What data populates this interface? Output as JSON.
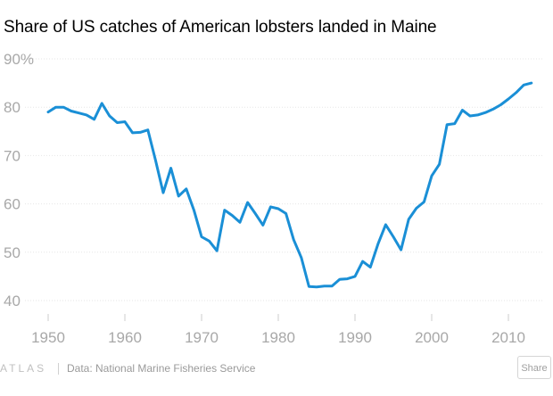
{
  "chart_data": {
    "type": "line",
    "title": "Share of US catches of American lobsters landed in Maine",
    "xlabel": "",
    "ylabel": "",
    "xlim": [
      1947,
      2015
    ],
    "ylim": [
      37,
      92
    ],
    "x_ticks": [
      1950,
      1960,
      1970,
      1980,
      1990,
      2000,
      2010
    ],
    "y_ticks": [
      40,
      50,
      60,
      70,
      80,
      90
    ],
    "y_tick_labels": [
      "40",
      "50",
      "60",
      "70",
      "80",
      "90%"
    ],
    "grid": true,
    "line_color": "#1a8fd6",
    "series": [
      {
        "name": "",
        "x": [
          1950,
          1951,
          1952,
          1953,
          1954,
          1955,
          1956,
          1957,
          1958,
          1959,
          1960,
          1961,
          1962,
          1963,
          1964,
          1965,
          1966,
          1967,
          1968,
          1969,
          1970,
          1971,
          1972,
          1973,
          1974,
          1975,
          1976,
          1977,
          1978,
          1979,
          1980,
          1981,
          1982,
          1983,
          1984,
          1985,
          1986,
          1987,
          1988,
          1989,
          1990,
          1991,
          1992,
          1993,
          1994,
          1995,
          1996,
          1997,
          1998,
          1999,
          2000,
          2001,
          2002,
          2003,
          2004,
          2005,
          2006,
          2007,
          2008,
          2009,
          2010,
          2011,
          2012,
          2013
        ],
        "values": [
          79,
          80,
          80,
          79.2,
          78.8,
          78.4,
          77.5,
          80.8,
          78.2,
          76.8,
          77,
          74.7,
          74.8,
          75.3,
          69,
          62.3,
          67.4,
          61.6,
          63.1,
          58.7,
          53.2,
          52.3,
          50.3,
          58.7,
          57.6,
          56.2,
          60.3,
          58,
          55.6,
          59.4,
          59,
          58,
          52.6,
          48.9,
          42.9,
          42.8,
          43,
          43,
          44.4,
          44.5,
          45,
          48.1,
          46.9,
          51.7,
          55.7,
          53.2,
          50.5,
          56.8,
          59.1,
          60.4,
          65.8,
          68.2,
          76.4,
          76.6,
          79.4,
          78.2,
          78.4,
          78.9,
          79.6,
          80.5,
          81.7,
          83,
          84.6,
          85
        ]
      }
    ]
  },
  "footer": {
    "logo": "ATLAS",
    "source": "Data: National Marine Fisheries Service",
    "share_label": "Share"
  }
}
